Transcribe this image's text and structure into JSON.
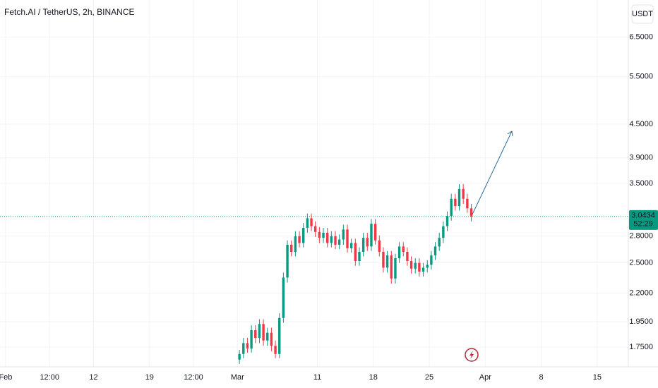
{
  "chart_data": {
    "type": "candlestick",
    "title": "Fetch.AI / TetherUS, 2h, BINANCE",
    "currency": "USDT",
    "log_scale": true,
    "grid": true,
    "up_color": "#089981",
    "down_color": "#f23645",
    "ylim": [
      1.61,
      7.61
    ],
    "yticks": [
      {
        "value": 6.5,
        "label": "6.5000"
      },
      {
        "value": 5.5,
        "label": "5.5000"
      },
      {
        "value": 4.5,
        "label": "4.5000"
      },
      {
        "value": 3.9,
        "label": "3.9000"
      },
      {
        "value": 3.5,
        "label": "3.5000"
      },
      {
        "value": 2.8,
        "label": "2.8000"
      },
      {
        "value": 2.5,
        "label": "2.5000"
      },
      {
        "value": 2.2,
        "label": "2.2000"
      },
      {
        "value": 1.95,
        "label": "1.9500"
      },
      {
        "value": 1.75,
        "label": "1.7500"
      }
    ],
    "xlim": [
      -0.7,
      77.9
    ],
    "xticks": [
      {
        "value": 0,
        "label": "Feb"
      },
      {
        "value": 5.5,
        "label": "12:00"
      },
      {
        "value": 11,
        "label": "12"
      },
      {
        "value": 18,
        "label": "19"
      },
      {
        "value": 23.5,
        "label": "12:00"
      },
      {
        "value": 29,
        "label": "Mar"
      },
      {
        "value": 39,
        "label": "11"
      },
      {
        "value": 46,
        "label": "18"
      },
      {
        "value": 53,
        "label": "25"
      },
      {
        "value": 60,
        "label": "Apr"
      },
      {
        "value": 67,
        "label": "8"
      },
      {
        "value": 74,
        "label": "15"
      }
    ],
    "x": [
      29.25,
      29.75,
      30.25,
      30.75,
      31.25,
      31.75,
      32.25,
      32.75,
      33.25,
      33.75,
      34.25,
      34.75,
      35.25,
      35.75,
      36.25,
      36.75,
      37.25,
      37.75,
      38.25,
      38.75,
      39.25,
      39.75,
      40.25,
      40.75,
      41.25,
      41.75,
      42.25,
      42.75,
      43.25,
      43.75,
      44.25,
      44.75,
      45.25,
      45.75,
      46.25,
      46.75,
      47.25,
      47.75,
      48.25,
      48.75,
      49.25,
      49.75,
      50.25,
      50.75,
      51.25,
      51.75,
      52.25,
      52.75,
      53.25,
      53.75,
      54.25,
      54.75,
      55.25,
      55.75,
      56.25,
      56.75,
      57.25,
      57.75,
      58.25
    ],
    "open": [
      1.66,
      1.7,
      1.78,
      1.74,
      1.88,
      1.82,
      1.93,
      1.8,
      1.86,
      1.76,
      1.7,
      1.98,
      2.35,
      2.7,
      2.62,
      2.8,
      2.72,
      2.9,
      3.02,
      2.92,
      2.85,
      2.78,
      2.84,
      2.72,
      2.8,
      2.7,
      2.76,
      2.88,
      2.66,
      2.72,
      2.52,
      2.62,
      2.78,
      2.68,
      2.95,
      2.75,
      2.62,
      2.45,
      2.58,
      2.34,
      2.55,
      2.68,
      2.62,
      2.52,
      2.44,
      2.5,
      2.41,
      2.45,
      2.48,
      2.58,
      2.68,
      2.78,
      2.92,
      3.05,
      3.28,
      3.18,
      3.42,
      3.28,
      3.15
    ],
    "high": [
      1.73,
      1.82,
      1.82,
      1.92,
      1.92,
      1.97,
      1.97,
      1.9,
      1.9,
      1.8,
      2.02,
      2.4,
      2.75,
      2.75,
      2.86,
      2.86,
      2.96,
      3.08,
      3.08,
      2.98,
      2.91,
      2.9,
      2.9,
      2.86,
      2.86,
      2.82,
      2.94,
      2.94,
      2.77,
      2.77,
      2.67,
      2.84,
      2.84,
      3.01,
      3.01,
      2.81,
      2.67,
      2.63,
      2.63,
      2.6,
      2.73,
      2.73,
      2.67,
      2.57,
      2.55,
      2.55,
      2.5,
      2.53,
      2.63,
      2.73,
      2.84,
      2.98,
      3.11,
      3.35,
      3.35,
      3.49,
      3.49,
      3.35,
      3.21
    ],
    "low": [
      1.63,
      1.67,
      1.71,
      1.71,
      1.78,
      1.78,
      1.76,
      1.76,
      1.72,
      1.67,
      1.67,
      1.94,
      2.3,
      2.57,
      2.57,
      2.67,
      2.67,
      2.84,
      2.86,
      2.79,
      2.72,
      2.72,
      2.67,
      2.67,
      2.65,
      2.65,
      2.7,
      2.61,
      2.61,
      2.47,
      2.47,
      2.57,
      2.63,
      2.63,
      2.7,
      2.57,
      2.4,
      2.4,
      2.29,
      2.29,
      2.5,
      2.57,
      2.47,
      2.39,
      2.39,
      2.36,
      2.36,
      2.4,
      2.43,
      2.53,
      2.63,
      2.72,
      2.86,
      2.99,
      3.12,
      3.12,
      3.21,
      3.09,
      2.98
    ],
    "close": [
      1.7,
      1.78,
      1.74,
      1.88,
      1.82,
      1.93,
      1.8,
      1.86,
      1.76,
      1.7,
      1.98,
      2.35,
      2.7,
      2.62,
      2.8,
      2.72,
      2.9,
      3.02,
      2.92,
      2.85,
      2.78,
      2.84,
      2.72,
      2.8,
      2.7,
      2.76,
      2.88,
      2.66,
      2.72,
      2.52,
      2.62,
      2.78,
      2.68,
      2.95,
      2.75,
      2.62,
      2.45,
      2.58,
      2.34,
      2.55,
      2.68,
      2.62,
      2.52,
      2.44,
      2.5,
      2.41,
      2.45,
      2.48,
      2.58,
      2.68,
      2.78,
      2.92,
      3.05,
      3.28,
      3.18,
      3.42,
      3.28,
      3.15,
      3.0434
    ],
    "last_price": 3.0434,
    "countdown": "52:29"
  }
}
